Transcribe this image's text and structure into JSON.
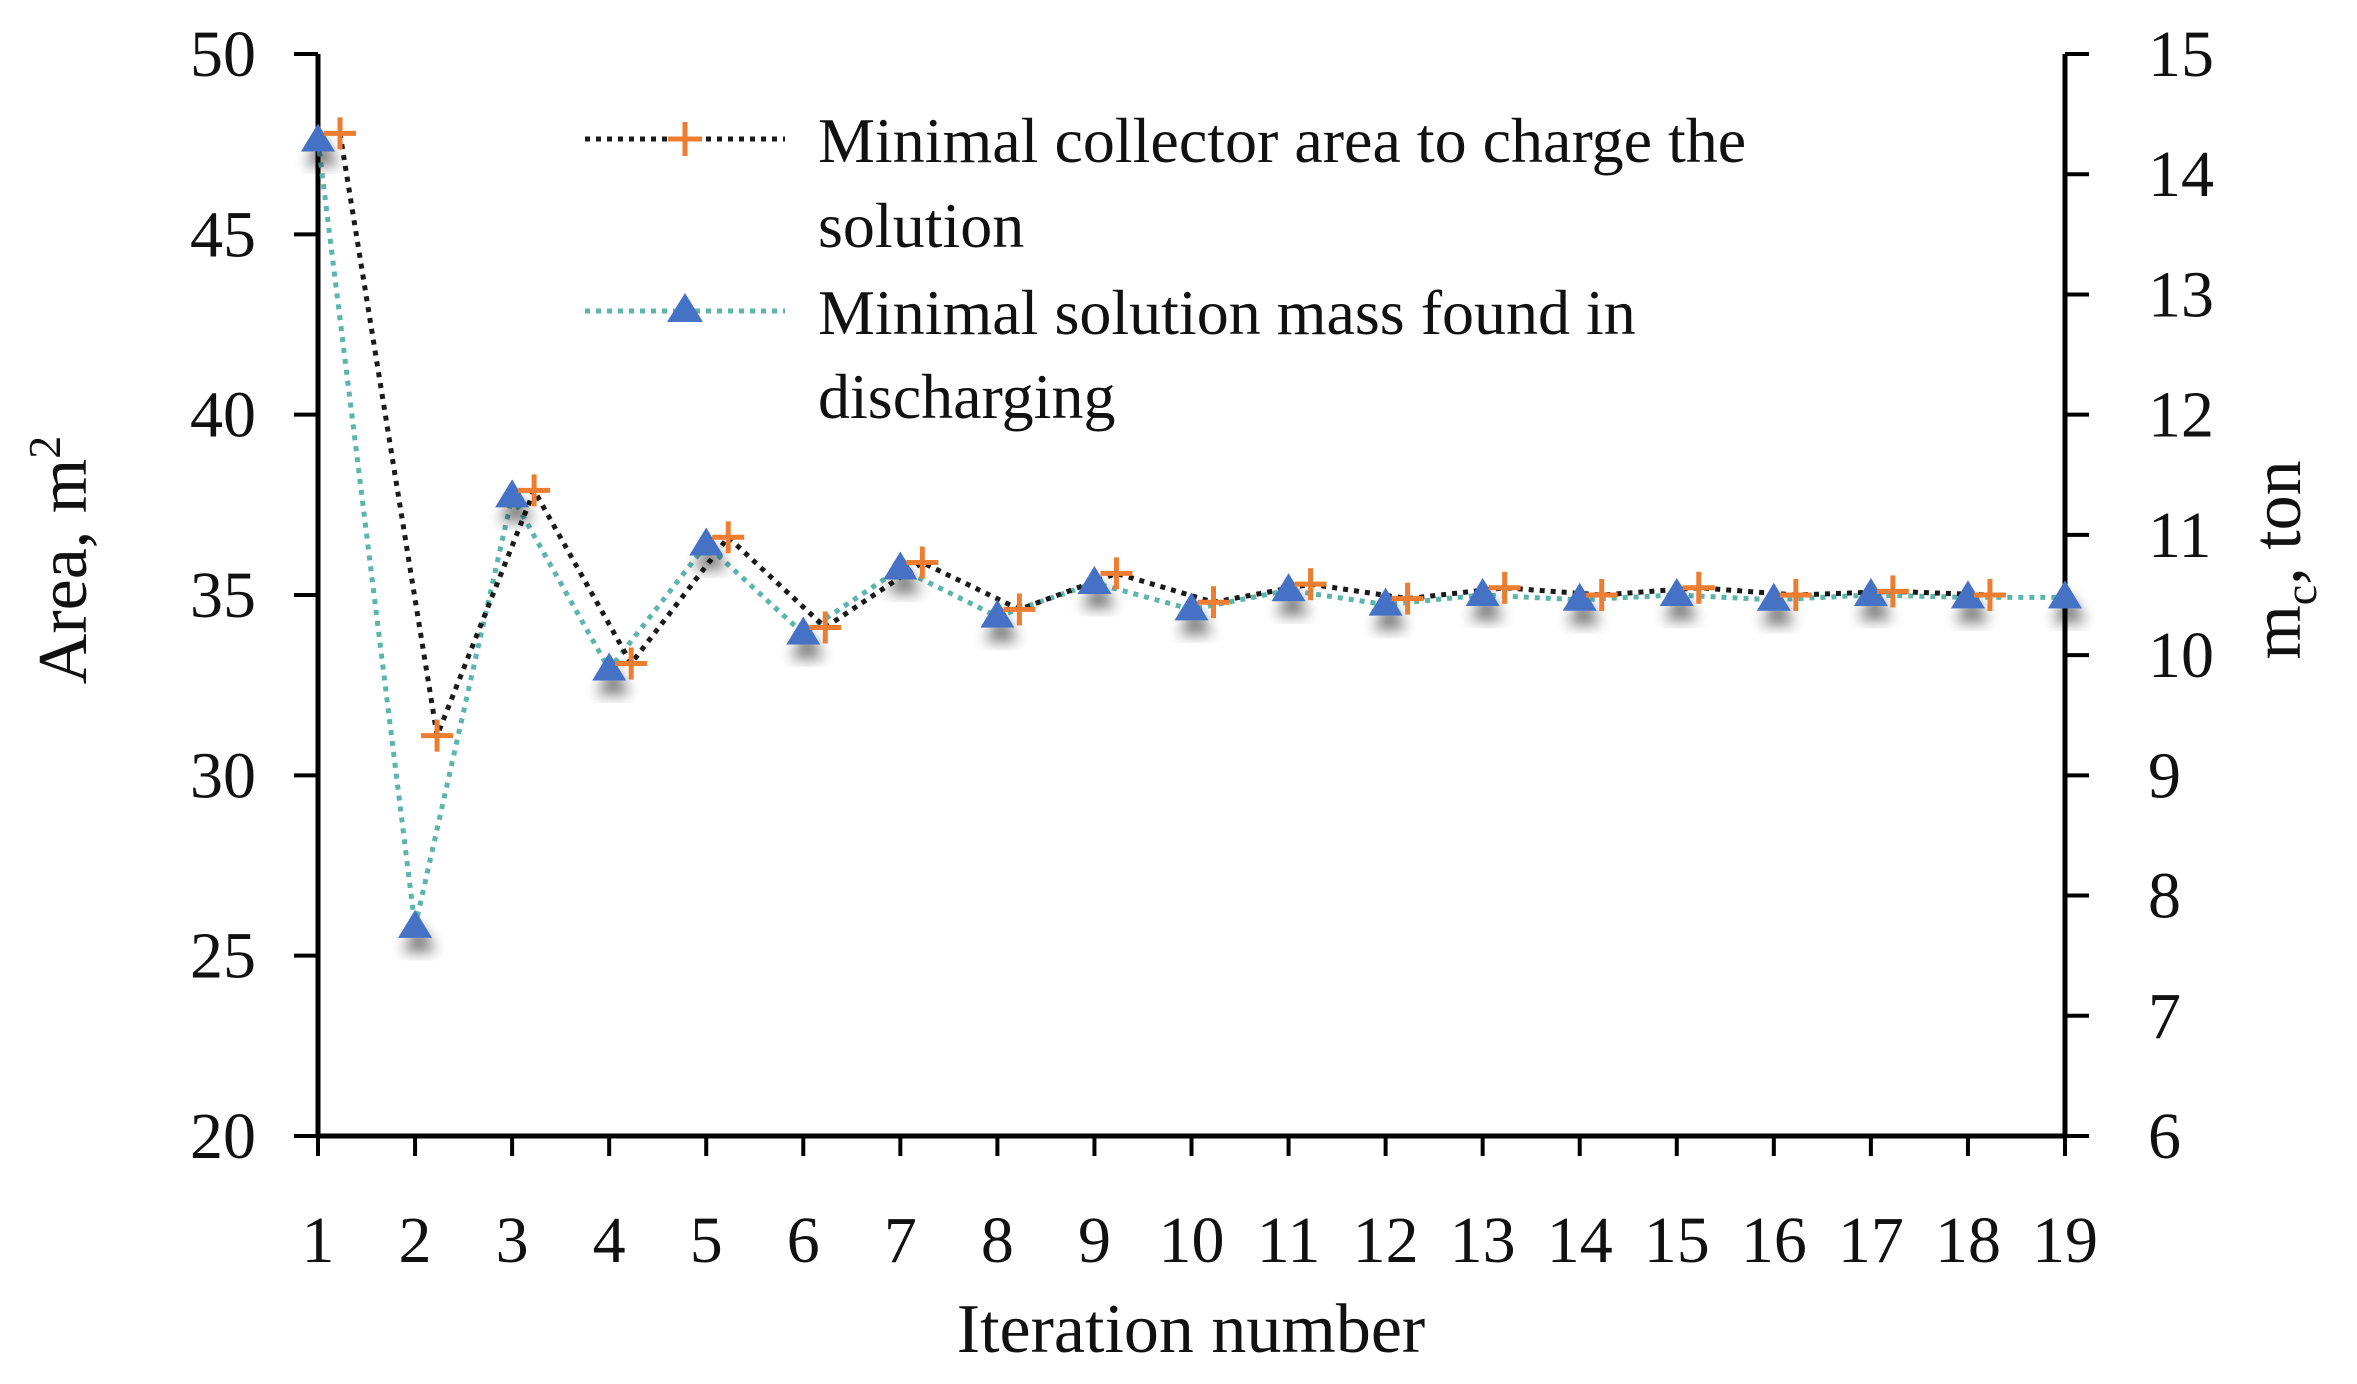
{
  "chart_data": {
    "type": "line",
    "title": "",
    "xlabel": "Iteration number",
    "ylabel_left": {
      "base": "Area, m",
      "superscript": "2"
    },
    "ylabel_right": {
      "base": "m",
      "subscript": "c",
      "suffix": ", ton"
    },
    "x": [
      1,
      2,
      3,
      4,
      5,
      6,
      7,
      8,
      9,
      10,
      11,
      12,
      13,
      14,
      15,
      16,
      17,
      18,
      19
    ],
    "xticks": [
      "1",
      "2",
      "3",
      "4",
      "5",
      "6",
      "7",
      "8",
      "9",
      "10",
      "11",
      "12",
      "13",
      "14",
      "15",
      "16",
      "17",
      "18",
      "19"
    ],
    "ylim_left": [
      20,
      50
    ],
    "yticks_left": [
      "20",
      "25",
      "30",
      "35",
      "40",
      "45",
      "50"
    ],
    "ylim_right": [
      6,
      15
    ],
    "yticks_right": [
      "6",
      "7",
      "8",
      "9",
      "10",
      "11",
      "12",
      "13",
      "14",
      "15"
    ],
    "grid": false,
    "legend_position": "top-right",
    "series": [
      {
        "name": "Minimal collector area to charge the solution",
        "legend_lines": [
          "Minimal collector area to charge the",
          "solution"
        ],
        "axis": "left",
        "marker": "plus",
        "line_style": "dotted",
        "line_color": "#1a1a1a",
        "marker_color": "#ED7D31",
        "values": [
          47.8,
          31.1,
          37.9,
          33.1,
          36.6,
          34.1,
          35.9,
          34.6,
          35.6,
          34.8,
          35.3,
          34.9,
          35.2,
          35.0,
          35.2,
          35.0,
          35.1,
          35.0,
          null
        ]
      },
      {
        "name": "Minimal solution mass found in discharging",
        "legend_lines": [
          "Minimal solution mass found in",
          "discharging"
        ],
        "axis": "right",
        "marker": "triangle",
        "line_style": "dotted",
        "line_color": "#5BB5AD",
        "marker_color": "#4472C4",
        "values": [
          14.28,
          7.74,
          11.32,
          9.88,
          10.92,
          10.18,
          10.72,
          10.32,
          10.6,
          10.38,
          10.54,
          10.42,
          10.5,
          10.46,
          10.5,
          10.46,
          10.5,
          10.48,
          10.48
        ]
      }
    ]
  }
}
